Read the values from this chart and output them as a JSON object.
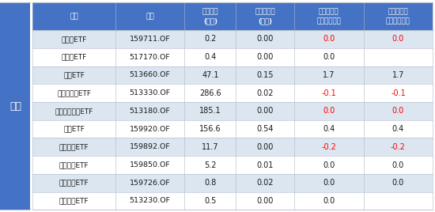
{
  "header_line1": [
    "产品",
    "代码",
    "最新规模",
    "单日净申赎",
    "本周以来净",
    "本月以来净"
  ],
  "header_line2": [
    "",
    "",
    "(亿元)",
    "(亿元)",
    "申赎（亿元）",
    "申赎（亿元）"
  ],
  "category": "港股",
  "rows": [
    [
      "港股通ETF",
      "159711.OF",
      "0.2",
      "0.00",
      "0.0",
      "0.0",
      "red",
      "red"
    ],
    [
      "沪港深ETF",
      "517170.OF",
      "0.4",
      "0.00",
      "0.0",
      "",
      "black",
      ""
    ],
    [
      "恒生ETF",
      "513660.OF",
      "47.1",
      "0.15",
      "1.7",
      "1.7",
      "black",
      "black"
    ],
    [
      "恒生互联网ETF",
      "513330.OF",
      "286.6",
      "0.02",
      "-0.1",
      "-0.1",
      "red",
      "red"
    ],
    [
      "恒生科技指数ETF",
      "513180.OF",
      "185.1",
      "0.00",
      "0.0",
      "0.0",
      "red",
      "red"
    ],
    [
      "恒生ETF",
      "159920.OF",
      "156.6",
      "0.54",
      "0.4",
      "0.4",
      "black",
      "black"
    ],
    [
      "恒生医药ETF",
      "159892.OF",
      "11.7",
      "0.00",
      "-0.2",
      "-0.2",
      "red",
      "red"
    ],
    [
      "恒生国企ETF",
      "159850.OF",
      "5.2",
      "0.01",
      "0.0",
      "0.0",
      "black",
      "black"
    ],
    [
      "恒生红利ETF",
      "159726.OF",
      "0.8",
      "0.02",
      "0.0",
      "0.0",
      "black",
      "black"
    ],
    [
      "港股消费ETF",
      "513230.OF",
      "0.5",
      "0.00",
      "0.0",
      "",
      "black",
      ""
    ]
  ],
  "col_ratios": [
    0.185,
    0.155,
    0.115,
    0.13,
    0.155,
    0.155
  ],
  "header_bg": "#4472C4",
  "header_fg": "#FFFFFF",
  "row_bg_light": "#DCE6F1",
  "row_bg_white": "#FFFFFF",
  "border_color": "#B0B8C8",
  "left_bar_color": "#4472C4",
  "red_color": "#FF0000",
  "black_color": "#1A1A1A",
  "figsize": [
    5.5,
    2.68
  ],
  "dpi": 100
}
